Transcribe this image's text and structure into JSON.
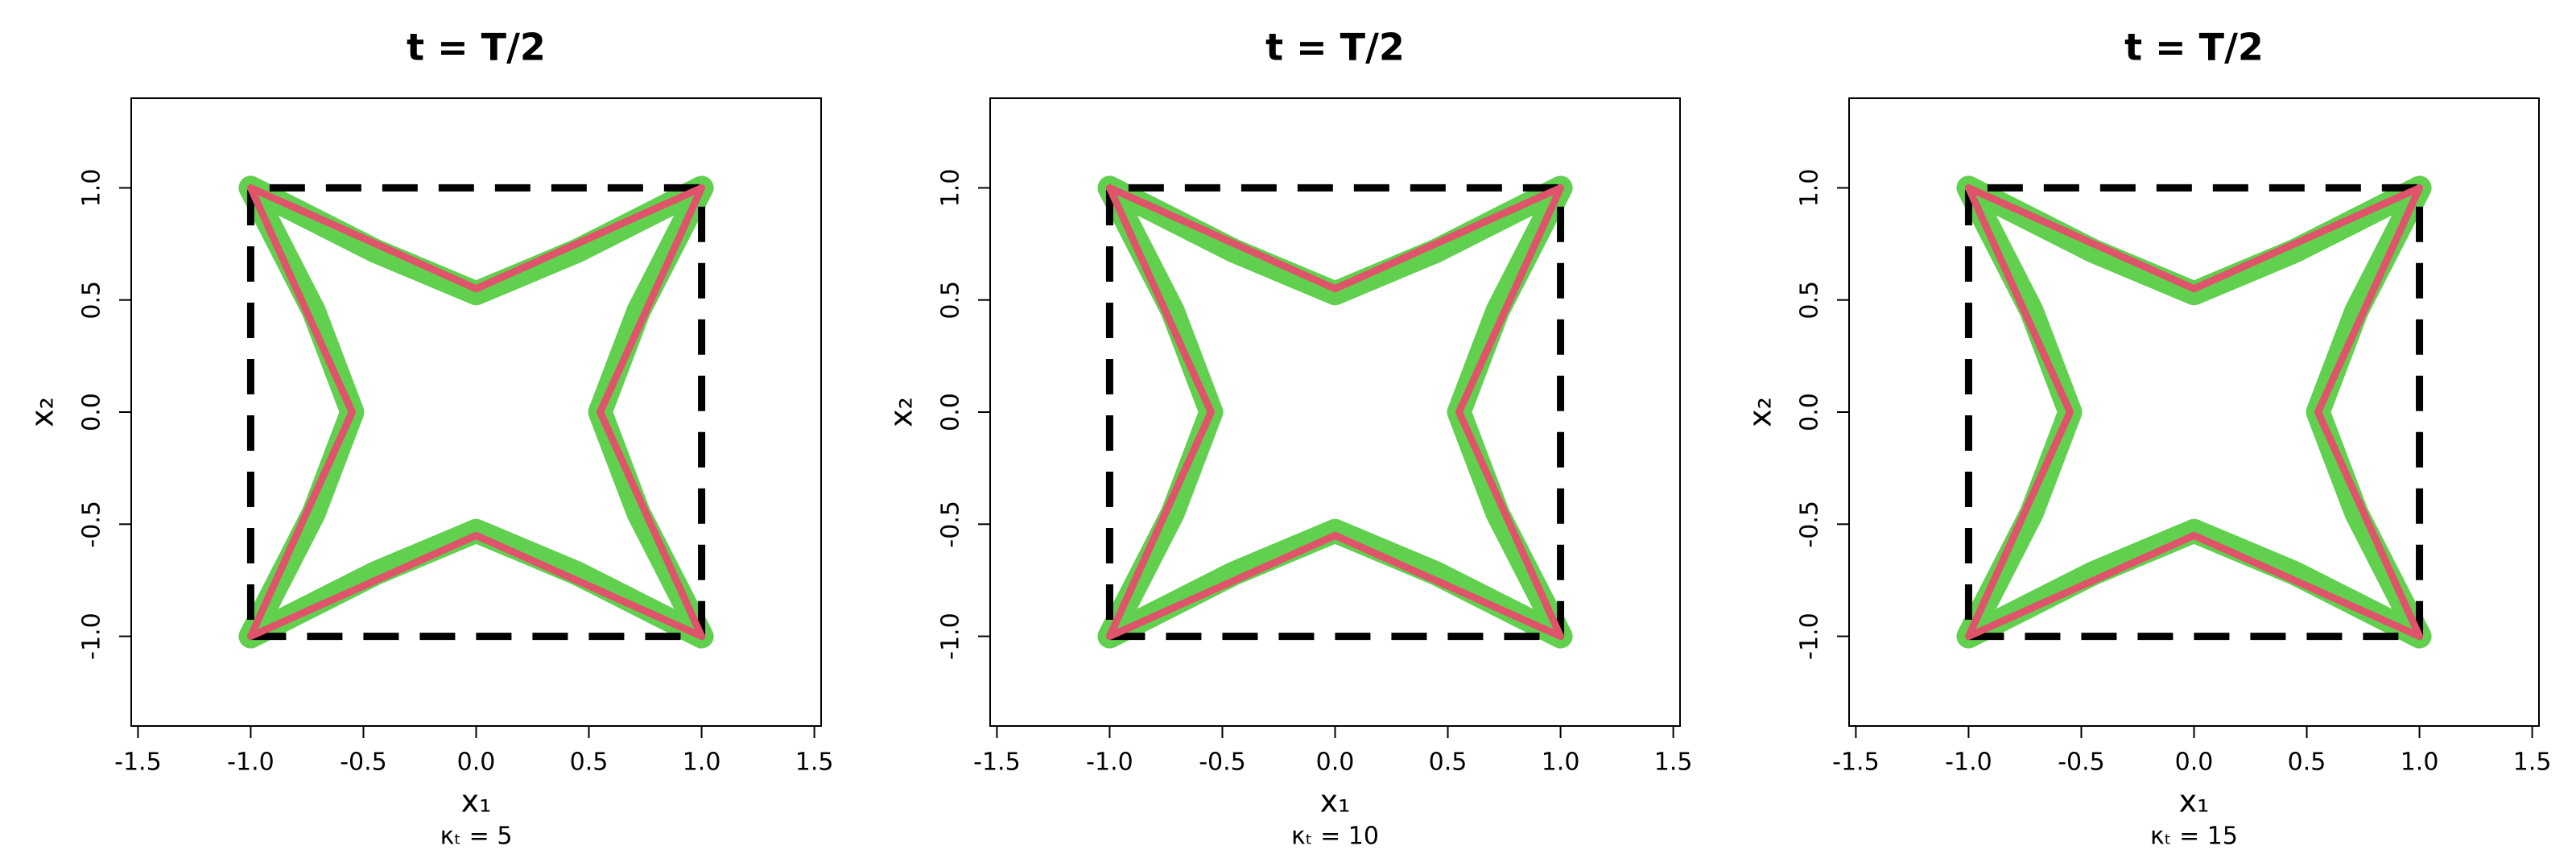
{
  "chart_data": [
    {
      "type": "line",
      "title": "t = T/2",
      "xlabel": "x₁",
      "ylabel": "x₂",
      "subtitle": "κₜ = 5",
      "xlim": [
        -1.53,
        1.53
      ],
      "ylim": [
        -1.4,
        1.4
      ],
      "xticks": [
        -1.5,
        {
          "value": -1.0,
          "label": "-1.0"
        },
        -0.5,
        {
          "value": 0,
          "label": "0.0"
        },
        0.5,
        {
          "value": 1.0,
          "label": "1.0"
        },
        1.5
      ],
      "yticks": [
        {
          "value": -1.0,
          "label": "-1.0"
        },
        -0.5,
        {
          "value": 0,
          "label": "0.0"
        },
        0.5,
        {
          "value": 1.0,
          "label": "1.0"
        }
      ],
      "series": [
        {
          "color": "#61d04f",
          "linewidth": 30,
          "linestyle": "solid",
          "x": [
            -1,
            -0.45,
            0,
            0.45,
            1,
            0.72,
            0.55,
            0.72,
            1,
            0.45,
            0,
            -0.45,
            -1,
            -0.72,
            -0.55,
            -0.72,
            -1
          ],
          "y": [
            1,
            0.72,
            0.53,
            0.72,
            1,
            0.45,
            0,
            -0.45,
            -1,
            -0.72,
            -0.53,
            -0.72,
            -1,
            -0.45,
            0,
            0.45,
            1
          ]
        },
        {
          "color": "#000000",
          "linewidth": 9,
          "linestyle": "dashed",
          "x": [
            -1,
            1,
            1,
            -1,
            -1
          ],
          "y": [
            -1,
            -1,
            1,
            1,
            -1
          ]
        },
        {
          "color": "#df536b",
          "linewidth": 9,
          "linestyle": "solid",
          "x": [
            -1,
            0,
            1,
            0.55,
            1,
            0,
            -1,
            -0.55,
            -1
          ],
          "y": [
            1,
            0.55,
            1,
            0,
            -1,
            -0.55,
            -1,
            0,
            1
          ]
        }
      ]
    },
    {
      "type": "line",
      "title": "t = T/2",
      "xlabel": "x₁",
      "ylabel": "x₂",
      "subtitle": "κₜ = 10",
      "xlim": [
        -1.53,
        1.53
      ],
      "ylim": [
        -1.4,
        1.4
      ],
      "xticks": [
        -1.5,
        {
          "value": -1.0,
          "label": "-1.0"
        },
        -0.5,
        {
          "value": 0,
          "label": "0.0"
        },
        0.5,
        {
          "value": 1.0,
          "label": "1.0"
        },
        1.5
      ],
      "yticks": [
        {
          "value": -1.0,
          "label": "-1.0"
        },
        -0.5,
        {
          "value": 0,
          "label": "0.0"
        },
        0.5,
        {
          "value": 1.0,
          "label": "1.0"
        }
      ],
      "series": [
        {
          "color": "#61d04f",
          "linewidth": 30,
          "linestyle": "solid",
          "x": [
            -1,
            -0.45,
            0,
            0.45,
            1,
            0.72,
            0.55,
            0.72,
            1,
            0.45,
            0,
            -0.45,
            -1,
            -0.72,
            -0.55,
            -0.72,
            -1
          ],
          "y": [
            1,
            0.72,
            0.53,
            0.72,
            1,
            0.45,
            0,
            -0.45,
            -1,
            -0.72,
            -0.53,
            -0.72,
            -1,
            -0.45,
            0,
            0.45,
            1
          ]
        },
        {
          "color": "#000000",
          "linewidth": 9,
          "linestyle": "dashed",
          "x": [
            -1,
            1,
            1,
            -1,
            -1
          ],
          "y": [
            -1,
            -1,
            1,
            1,
            -1
          ]
        },
        {
          "color": "#df536b",
          "linewidth": 9,
          "linestyle": "solid",
          "x": [
            -1,
            0,
            1,
            0.55,
            1,
            0,
            -1,
            -0.55,
            -1
          ],
          "y": [
            1,
            0.55,
            1,
            0,
            -1,
            -0.55,
            -1,
            0,
            1
          ]
        }
      ]
    },
    {
      "type": "line",
      "title": "t = T/2",
      "xlabel": "x₁",
      "ylabel": "x₂",
      "subtitle": "κₜ = 15",
      "xlim": [
        -1.53,
        1.53
      ],
      "ylim": [
        -1.4,
        1.4
      ],
      "xticks": [
        -1.5,
        {
          "value": -1.0,
          "label": "-1.0"
        },
        -0.5,
        {
          "value": 0,
          "label": "0.0"
        },
        0.5,
        {
          "value": 1.0,
          "label": "1.0"
        },
        1.5
      ],
      "yticks": [
        {
          "value": -1.0,
          "label": "-1.0"
        },
        -0.5,
        {
          "value": 0,
          "label": "0.0"
        },
        0.5,
        {
          "value": 1.0,
          "label": "1.0"
        }
      ],
      "series": [
        {
          "color": "#61d04f",
          "linewidth": 30,
          "linestyle": "solid",
          "x": [
            -1,
            -0.45,
            0,
            0.45,
            1,
            0.72,
            0.55,
            0.72,
            1,
            0.45,
            0,
            -0.45,
            -1,
            -0.72,
            -0.55,
            -0.72,
            -1
          ],
          "y": [
            1,
            0.72,
            0.53,
            0.72,
            1,
            0.45,
            0,
            -0.45,
            -1,
            -0.72,
            -0.53,
            -0.72,
            -1,
            -0.45,
            0,
            0.45,
            1
          ]
        },
        {
          "color": "#000000",
          "linewidth": 9,
          "linestyle": "dashed",
          "x": [
            -1,
            1,
            1,
            -1,
            -1
          ],
          "y": [
            -1,
            -1,
            1,
            1,
            -1
          ]
        },
        {
          "color": "#df536b",
          "linewidth": 9,
          "linestyle": "solid",
          "x": [
            -1,
            0,
            1,
            0.55,
            1,
            0,
            -1,
            -0.55,
            -1
          ],
          "y": [
            1,
            0.55,
            1,
            0,
            -1,
            -0.55,
            -1,
            0,
            1
          ]
        }
      ]
    }
  ]
}
